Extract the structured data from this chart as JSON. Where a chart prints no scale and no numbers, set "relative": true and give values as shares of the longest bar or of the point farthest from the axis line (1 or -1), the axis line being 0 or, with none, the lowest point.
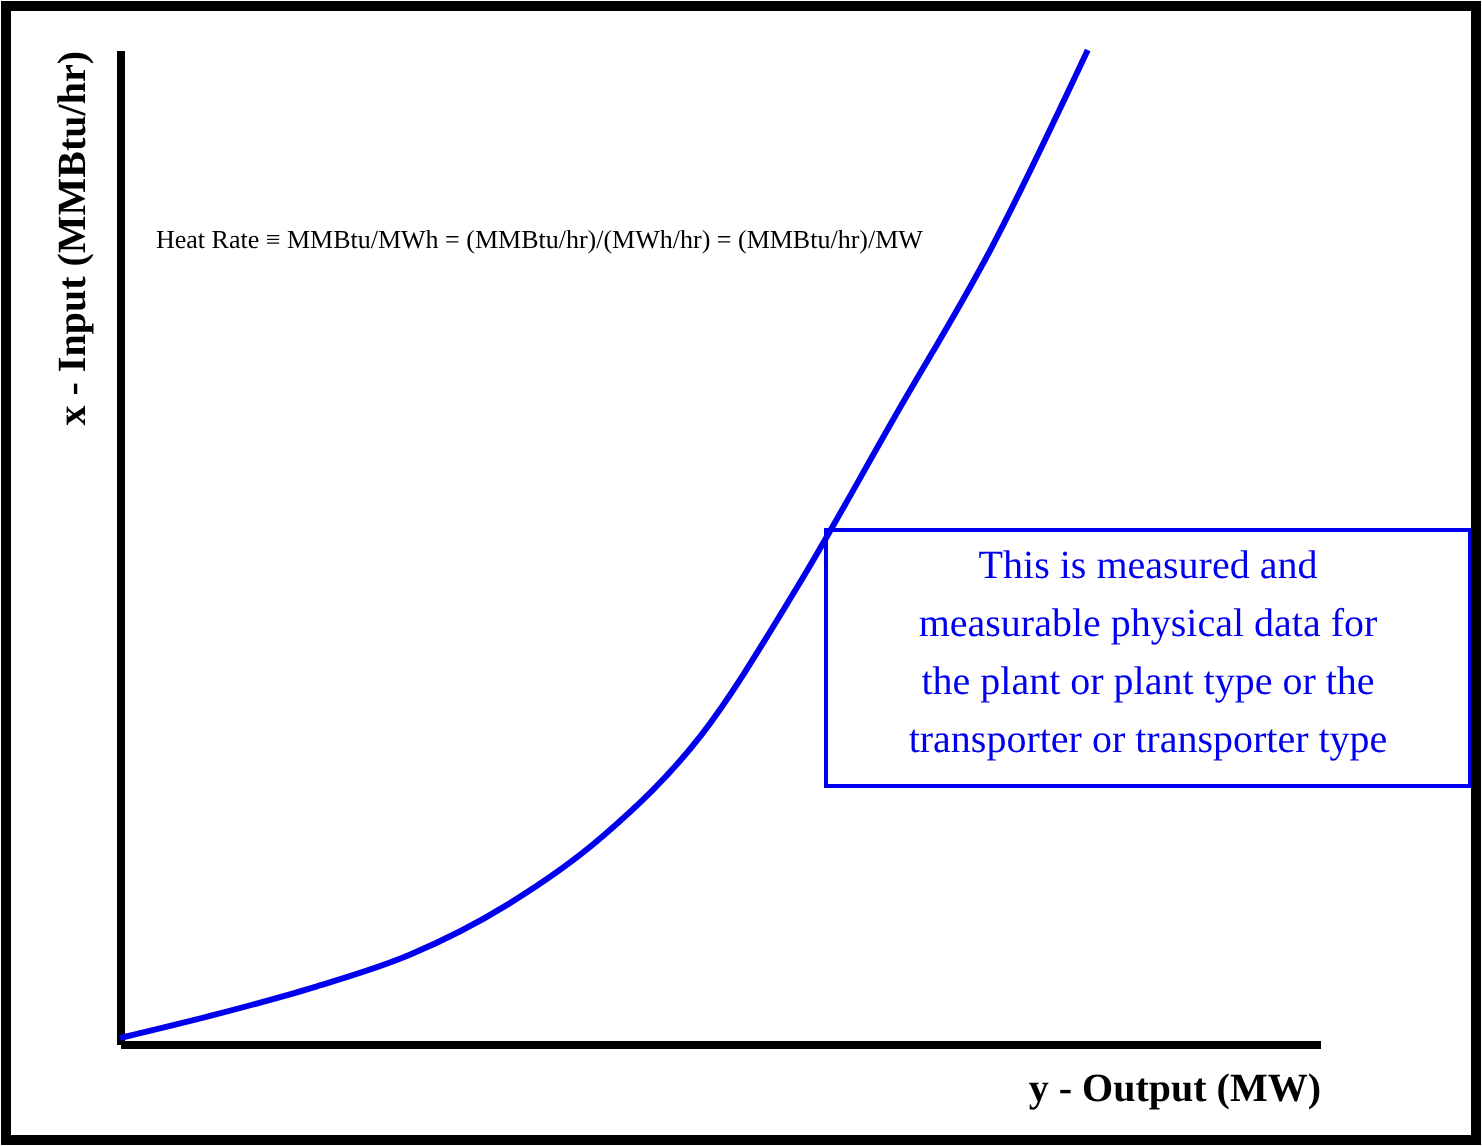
{
  "chart_data": {
    "type": "line",
    "relative": true,
    "xlabel": "y - Output (MW)",
    "ylabel": "x - Input (MMBtu/hr)",
    "categories": [
      null,
      null,
      null,
      null,
      null,
      null,
      null,
      null,
      null,
      null,
      null,
      null,
      null
    ],
    "series": [
      {
        "color": "#0000ee",
        "values": [
          0.006,
          0.03,
          0.057,
          0.09,
          0.14,
          0.21,
          0.31,
          0.46,
          0.63,
          0.8,
          1.0,
          null,
          null
        ]
      }
    ],
    "annotations": [
      "Heat Rate ≡ MMBtu/MWh = (MMBtu/hr)/(MWh/hr) = (MMBtu/hr)/MW",
      "This is measured and\nmeasurable physical data for\nthe plant or plant type or the\ntransporter or transporter type"
    ],
    "grid": false,
    "tick_labels": false,
    "line_style": "solid",
    "marker": "none"
  }
}
